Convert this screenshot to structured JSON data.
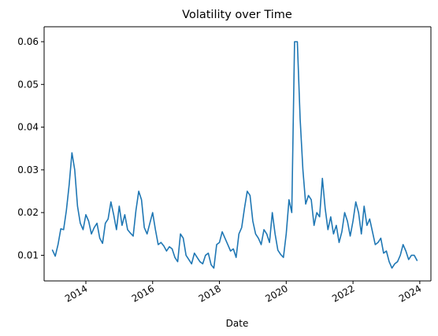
{
  "chart_data": {
    "type": "line",
    "title": "Volatility over Time",
    "xlabel": "Date",
    "ylabel": "",
    "x_ticks": [
      "2014",
      "2016",
      "2018",
      "2020",
      "2022",
      "2024"
    ],
    "y_ticks": [
      "0.01",
      "0.02",
      "0.03",
      "0.04",
      "0.05",
      "0.06"
    ],
    "xlim": [
      "2012-10-01",
      "2024-05-01"
    ],
    "ylim": [
      0.004,
      0.0635
    ],
    "grid": false,
    "line_color": "#1f77b4",
    "series": [
      {
        "x": [
          "2013-01-01",
          "2013-02-01",
          "2013-03-01",
          "2013-04-01",
          "2013-05-01",
          "2013-06-01",
          "2013-07-01",
          "2013-08-01",
          "2013-09-01",
          "2013-10-01",
          "2013-11-01",
          "2013-12-01",
          "2014-01-01",
          "2014-02-01",
          "2014-03-01",
          "2014-04-01",
          "2014-05-01",
          "2014-06-01",
          "2014-07-01",
          "2014-08-01",
          "2014-09-01",
          "2014-10-01",
          "2014-11-01",
          "2014-12-01",
          "2015-01-01",
          "2015-02-01",
          "2015-03-01",
          "2015-04-01",
          "2015-05-01",
          "2015-06-01",
          "2015-07-01",
          "2015-08-01",
          "2015-09-01",
          "2015-10-01",
          "2015-11-01",
          "2015-12-01",
          "2016-01-01",
          "2016-02-01",
          "2016-03-01",
          "2016-04-01",
          "2016-05-01",
          "2016-06-01",
          "2016-07-01",
          "2016-08-01",
          "2016-09-01",
          "2016-10-01",
          "2016-11-01",
          "2016-12-01",
          "2017-01-01",
          "2017-02-01",
          "2017-03-01",
          "2017-04-01",
          "2017-05-01",
          "2017-06-01",
          "2017-07-01",
          "2017-08-01",
          "2017-09-01",
          "2017-10-01",
          "2017-11-01",
          "2017-12-01",
          "2018-01-01",
          "2018-02-01",
          "2018-03-01",
          "2018-04-01",
          "2018-05-01",
          "2018-06-01",
          "2018-07-01",
          "2018-08-01",
          "2018-09-01",
          "2018-10-01",
          "2018-11-01",
          "2018-12-01",
          "2019-01-01",
          "2019-02-01",
          "2019-03-01",
          "2019-04-01",
          "2019-05-01",
          "2019-06-01",
          "2019-07-01",
          "2019-08-01",
          "2019-09-01",
          "2019-10-01",
          "2019-11-01",
          "2019-12-01",
          "2020-01-01",
          "2020-02-01",
          "2020-03-01",
          "2020-04-01",
          "2020-05-01",
          "2020-06-01",
          "2020-07-01",
          "2020-08-01",
          "2020-09-01",
          "2020-10-01",
          "2020-11-01",
          "2020-12-01",
          "2021-01-01",
          "2021-02-01",
          "2021-03-01",
          "2021-04-01",
          "2021-05-01",
          "2021-06-01",
          "2021-07-01",
          "2021-08-01",
          "2021-09-01",
          "2021-10-01",
          "2021-11-01",
          "2021-12-01",
          "2022-01-01",
          "2022-02-01",
          "2022-03-01",
          "2022-04-01",
          "2022-05-01",
          "2022-06-01",
          "2022-07-01",
          "2022-08-01",
          "2022-09-01",
          "2022-10-01",
          "2022-11-01",
          "2022-12-01",
          "2023-01-01",
          "2023-02-01",
          "2023-03-01",
          "2023-04-01",
          "2023-05-01",
          "2023-06-01",
          "2023-07-01",
          "2023-08-01",
          "2023-09-01",
          "2023-10-01",
          "2023-11-01",
          "2023-12-01"
        ],
        "values": [
          0.0112,
          0.0098,
          0.0125,
          0.0162,
          0.016,
          0.0205,
          0.0265,
          0.034,
          0.03,
          0.0215,
          0.0175,
          0.016,
          0.0195,
          0.018,
          0.015,
          0.0165,
          0.0175,
          0.014,
          0.0128,
          0.0175,
          0.0185,
          0.0225,
          0.0195,
          0.016,
          0.0215,
          0.017,
          0.0195,
          0.016,
          0.0152,
          0.0145,
          0.0205,
          0.025,
          0.023,
          0.0165,
          0.015,
          0.0175,
          0.02,
          0.016,
          0.0125,
          0.013,
          0.0122,
          0.011,
          0.012,
          0.0115,
          0.0095,
          0.0085,
          0.015,
          0.014,
          0.01,
          0.009,
          0.008,
          0.0105,
          0.0095,
          0.0085,
          0.008,
          0.01,
          0.0105,
          0.0078,
          0.007,
          0.0125,
          0.013,
          0.0155,
          0.014,
          0.0125,
          0.011,
          0.0115,
          0.0095,
          0.015,
          0.0165,
          0.021,
          0.025,
          0.024,
          0.018,
          0.015,
          0.014,
          0.0125,
          0.016,
          0.015,
          0.013,
          0.02,
          0.015,
          0.0112,
          0.0102,
          0.0095,
          0.015,
          0.023,
          0.02,
          0.06,
          0.06,
          0.042,
          0.03,
          0.022,
          0.024,
          0.023,
          0.017,
          0.02,
          0.019,
          0.028,
          0.021,
          0.016,
          0.019,
          0.015,
          0.017,
          0.013,
          0.0155,
          0.02,
          0.018,
          0.0145,
          0.018,
          0.0225,
          0.02,
          0.015,
          0.0215,
          0.017,
          0.0185,
          0.0155,
          0.0125,
          0.013,
          0.014,
          0.0105,
          0.011,
          0.0085,
          0.007,
          0.008,
          0.0085,
          0.01,
          0.0125,
          0.011,
          0.009,
          0.01,
          0.01,
          0.0088
        ]
      }
    ]
  }
}
